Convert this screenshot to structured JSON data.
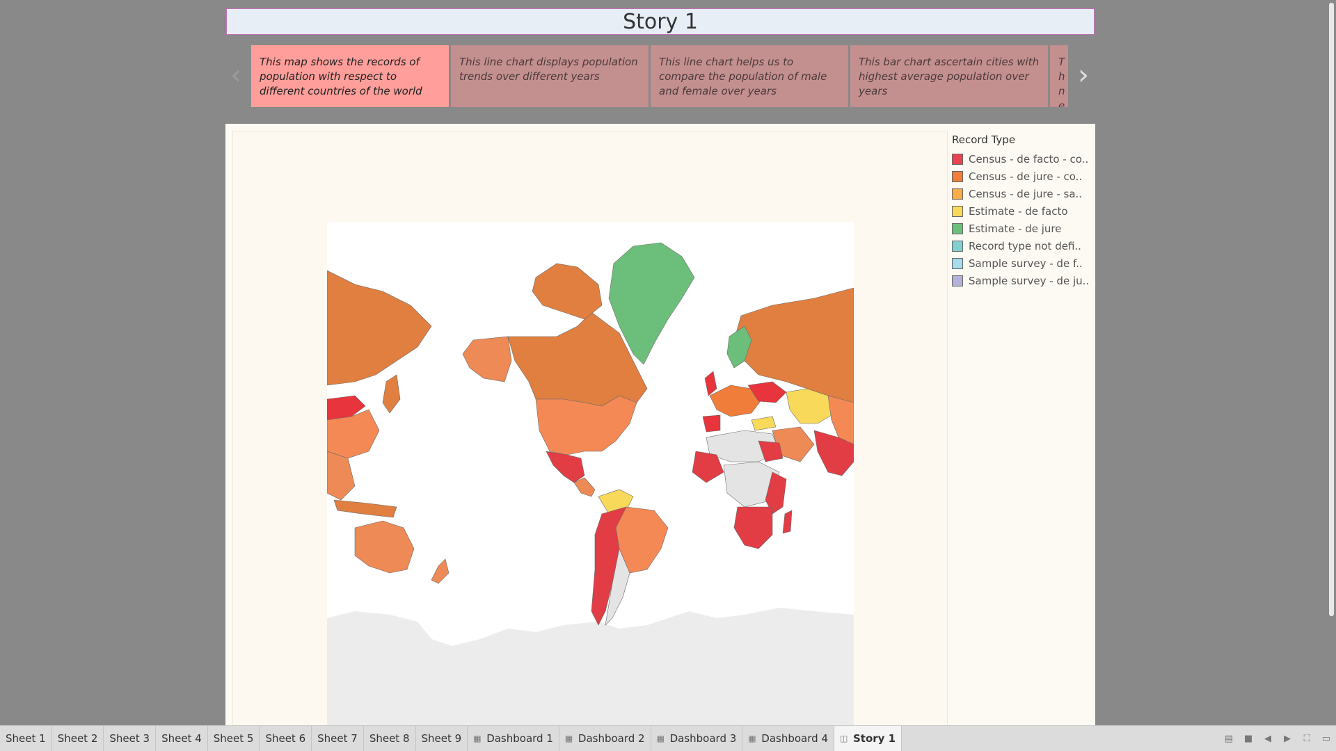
{
  "story": {
    "title": "Story 1"
  },
  "navigator": {
    "points": [
      {
        "text": "This map shows the records of population with respect to different countries of the world"
      },
      {
        "text": "This line chart displays population trends over different years"
      },
      {
        "text": "This line chart helps us to compare the population of male and female over years"
      },
      {
        "text": "This bar chart ascertain cities with highest average population over years"
      },
      {
        "text": "Th ne an"
      }
    ],
    "left_icon": "chevron-left-icon",
    "right_icon": "chevron-right-icon"
  },
  "legend": {
    "title": "Record Type",
    "items": [
      {
        "label": "Census - de facto - co..",
        "color": "#e8444f"
      },
      {
        "label": "Census - de jure - co..",
        "color": "#f07d3a"
      },
      {
        "label": "Census - de jure - sa..",
        "color": "#f7ae47"
      },
      {
        "label": "Estimate - de facto",
        "color": "#f9d95a"
      },
      {
        "label": "Estimate - de jure",
        "color": "#6cbf7a"
      },
      {
        "label": "Record type not defi..",
        "color": "#7fd0cf"
      },
      {
        "label": "Sample survey - de f..",
        "color": "#a7dcea"
      },
      {
        "label": "Sample survey - de ju..",
        "color": "#b4b2d8"
      }
    ]
  },
  "tabs": [
    {
      "label": "Sheet 1",
      "type": "sheet"
    },
    {
      "label": "Sheet 2",
      "type": "sheet"
    },
    {
      "label": "Sheet 3",
      "type": "sheet"
    },
    {
      "label": "Sheet 4",
      "type": "sheet"
    },
    {
      "label": "Sheet 5",
      "type": "sheet"
    },
    {
      "label": "Sheet 6",
      "type": "sheet"
    },
    {
      "label": "Sheet 7",
      "type": "sheet"
    },
    {
      "label": "Sheet 8",
      "type": "sheet"
    },
    {
      "label": "Sheet 9",
      "type": "sheet"
    },
    {
      "label": "Dashboard 1",
      "type": "dashboard"
    },
    {
      "label": "Dashboard 2",
      "type": "dashboard"
    },
    {
      "label": "Dashboard 3",
      "type": "dashboard"
    },
    {
      "label": "Dashboard 4",
      "type": "dashboard"
    },
    {
      "label": "Story 1",
      "type": "story",
      "active": true
    }
  ]
}
